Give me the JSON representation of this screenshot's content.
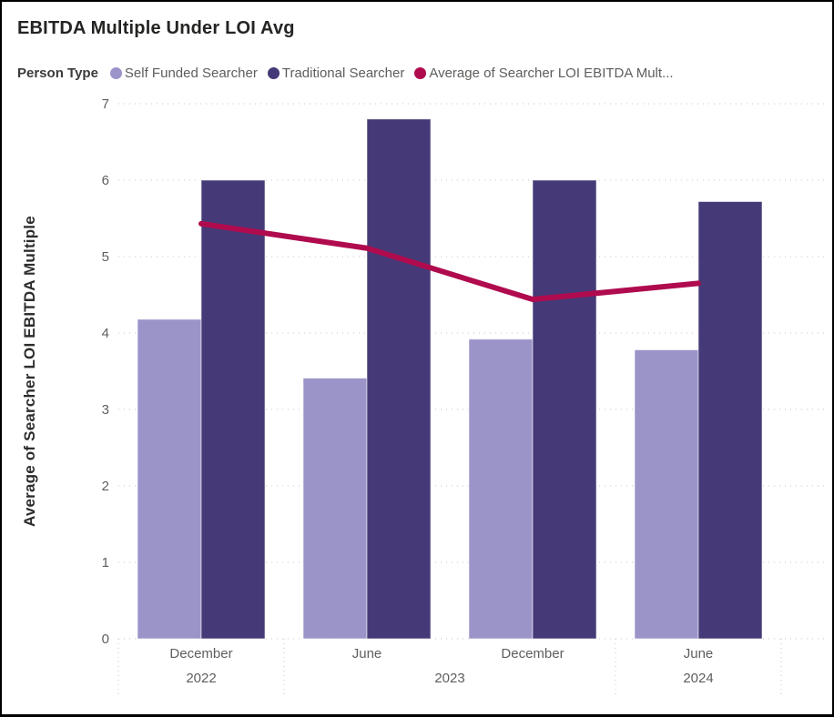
{
  "header": {
    "title": "EBITDA Multiple Under LOI Avg"
  },
  "colors": {
    "background": "#ffffff",
    "frame_border": "#000000",
    "title_text": "#252423",
    "legend_title_text": "#3A3A39",
    "muted_text": "#605E5C",
    "axis_title_text": "#2E2D2C",
    "gridline": "#C8C6C4",
    "separator": "#C8C6C4",
    "bar_light_purple": "#9B94C9",
    "bar_dark_purple": "#453A77",
    "line_crimson": "#B00B4E"
  },
  "chart_data": {
    "type": "combo-bar-line",
    "title": "EBITDA Multiple Under LOI Avg",
    "legend_title": "Person Type",
    "legend_position": "top",
    "grid": true,
    "ylabel": "Average of Searcher LOI EBITDA Multiple",
    "ylim": [
      0,
      7
    ],
    "yticks": [
      0,
      1,
      2,
      3,
      4,
      5,
      6,
      7
    ],
    "categories": [
      "December 2022",
      "June 2023",
      "December 2023",
      "June 2024"
    ],
    "x_month_labels": [
      "December",
      "June",
      "December",
      "June"
    ],
    "year_bands": [
      {
        "label": "2022",
        "from": 0,
        "to": 0
      },
      {
        "label": "2023",
        "from": 1,
        "to": 2
      },
      {
        "label": "2024",
        "from": 3,
        "to": 3
      }
    ],
    "series": [
      {
        "name": "Self Funded Searcher",
        "kind": "bar",
        "color": "#9B94C9",
        "values": [
          4.18,
          3.41,
          3.92,
          3.78
        ]
      },
      {
        "name": "Traditional Searcher",
        "kind": "bar",
        "color": "#453A77",
        "values": [
          6.0,
          6.8,
          6.0,
          5.72
        ]
      },
      {
        "name": "Average of Searcher LOI EBITDA Mult...",
        "kind": "line",
        "color": "#B00B4E",
        "values": [
          5.43,
          5.11,
          4.44,
          4.65
        ]
      }
    ]
  }
}
